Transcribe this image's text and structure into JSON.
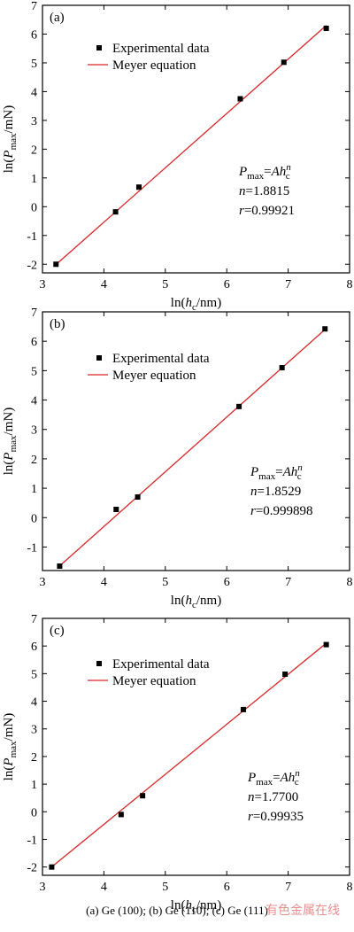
{
  "caption": "(a) Ge (100); (b) Ge (110); (c) Ge (111)",
  "watermark": "有色金属在线",
  "colors": {
    "fit_line": "#d62728",
    "marker": "#000000",
    "axis": "#000000"
  },
  "chart_data": [
    {
      "type": "scatter",
      "panel_label": "(a)",
      "xlabel": {
        "main": "ln(",
        "var": "h",
        "sub": "c",
        "tail": "/nm)"
      },
      "ylabel": {
        "main": "ln(",
        "var": "P",
        "sub": "max",
        "tail": "/mN)"
      },
      "xlim": [
        3,
        8
      ],
      "ylim": [
        -2.3,
        7
      ],
      "xticks": [
        3,
        4,
        5,
        6,
        7,
        8
      ],
      "yticks": [
        -2,
        -1,
        0,
        1,
        2,
        3,
        4,
        5,
        6,
        7
      ],
      "legend": {
        "markers_label": "Experimental data",
        "line_label": "Meyer equation"
      },
      "annotation": {
        "formula_lhs": "P",
        "formula_lhs_sub": "max",
        "formula_rhs": "=Ah",
        "formula_rhs_sub": "c",
        "formula_rhs_sup": "n",
        "n_label": "n",
        "n_value": "=1.8815",
        "r_label": "r",
        "r_value": "=0.99921"
      },
      "series": [
        {
          "name": "Experimental data",
          "x": [
            3.22,
            4.19,
            4.57,
            6.22,
            6.93,
            7.62
          ],
          "y": [
            -2.0,
            -0.18,
            0.68,
            3.75,
            5.02,
            6.2
          ]
        }
      ],
      "fit_line": {
        "name": "Meyer equation",
        "x": [
          3.2,
          7.62
        ],
        "y": [
          -2.05,
          6.3
        ]
      }
    },
    {
      "type": "scatter",
      "panel_label": "(b)",
      "xlabel": {
        "main": "ln(",
        "var": "h",
        "sub": "c",
        "tail": "/nm)"
      },
      "ylabel": {
        "main": "ln(",
        "var": "P",
        "sub": "max",
        "tail": "/mN)"
      },
      "xlim": [
        3,
        8
      ],
      "ylim": [
        -1.8,
        7
      ],
      "xticks": [
        3,
        4,
        5,
        6,
        7,
        8
      ],
      "yticks": [
        -1,
        0,
        1,
        2,
        3,
        4,
        5,
        6,
        7
      ],
      "legend": {
        "markers_label": "Experimental data",
        "line_label": "Meyer equation"
      },
      "annotation": {
        "formula_lhs": "P",
        "formula_lhs_sub": "max",
        "formula_rhs": "=Ah",
        "formula_rhs_sub": "c",
        "formula_rhs_sup": "n",
        "n_label": "n",
        "n_value": "=1.8529",
        "r_label": "r",
        "r_value": "=0.999898"
      },
      "series": [
        {
          "name": "Experimental data",
          "x": [
            3.28,
            4.2,
            4.55,
            6.2,
            6.9,
            7.6
          ],
          "y": [
            -1.65,
            0.28,
            0.7,
            3.78,
            5.1,
            6.42
          ]
        }
      ],
      "fit_line": {
        "name": "Meyer equation",
        "x": [
          3.25,
          7.6
        ],
        "y": [
          -1.7,
          6.4
        ]
      }
    },
    {
      "type": "scatter",
      "panel_label": "(c)",
      "xlabel": {
        "main": "ln(",
        "var": "h",
        "sub": "c",
        "tail": "/nm)"
      },
      "ylabel": {
        "main": "ln(",
        "var": "P",
        "sub": "max",
        "tail": "/mN)"
      },
      "xlim": [
        3,
        8
      ],
      "ylim": [
        -2.3,
        7
      ],
      "xticks": [
        3,
        4,
        5,
        6,
        7,
        8
      ],
      "yticks": [
        -2,
        -1,
        0,
        1,
        2,
        3,
        4,
        5,
        6,
        7
      ],
      "legend": {
        "markers_label": "Experimental data",
        "line_label": "Meyer equation"
      },
      "annotation": {
        "formula_lhs": "P",
        "formula_lhs_sub": "max",
        "formula_rhs": "=Ah",
        "formula_rhs_sub": "c",
        "formula_rhs_sup": "n",
        "n_label": "n",
        "n_value": "=1.7700",
        "r_label": "r",
        "r_value": "=0.99935"
      },
      "series": [
        {
          "name": "Experimental data",
          "x": [
            3.15,
            4.28,
            4.63,
            6.27,
            6.95,
            7.62
          ],
          "y": [
            -2.0,
            -0.1,
            0.58,
            3.7,
            4.98,
            6.05
          ]
        }
      ],
      "fit_line": {
        "name": "Meyer equation",
        "x": [
          3.12,
          7.62
        ],
        "y": [
          -2.05,
          6.1
        ]
      }
    }
  ]
}
